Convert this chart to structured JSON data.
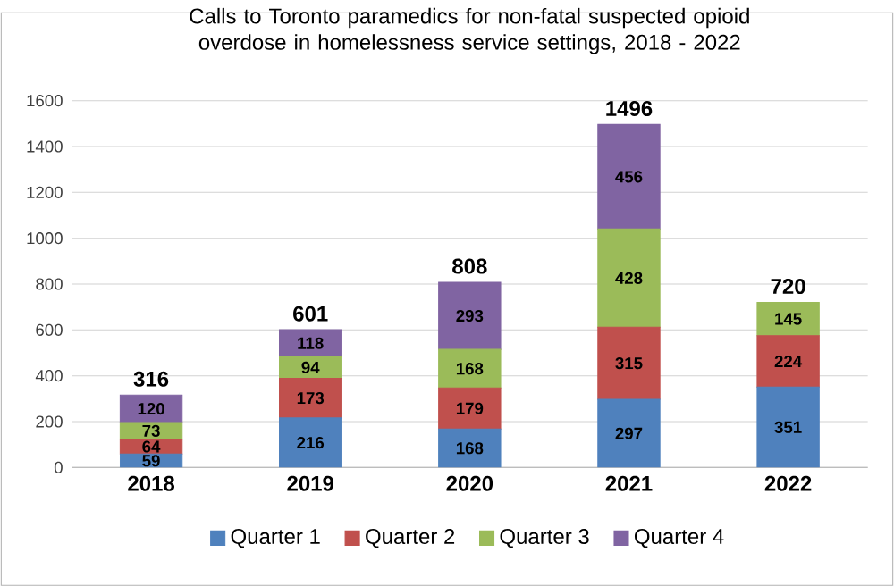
{
  "chart_data": {
    "type": "bar",
    "stacked": true,
    "title": "Calls to Toronto paramedics for non-fatal suspected opioid overdose in homelessness service settings, 2018 - 2022",
    "categories": [
      "2018",
      "2019",
      "2020",
      "2021",
      "2022"
    ],
    "series": [
      {
        "name": "Quarter 1",
        "color": "#4f81bd",
        "values": [
          59,
          216,
          168,
          297,
          351
        ]
      },
      {
        "name": "Quarter 2",
        "color": "#c0504d",
        "values": [
          64,
          173,
          179,
          315,
          224
        ]
      },
      {
        "name": "Quarter 3",
        "color": "#9bbb59",
        "values": [
          73,
          94,
          168,
          428,
          145
        ]
      },
      {
        "name": "Quarter 4",
        "color": "#8064a2",
        "values": [
          120,
          118,
          293,
          456,
          null
        ]
      }
    ],
    "totals": [
      "316",
      "601",
      "808",
      "1496",
      "720"
    ],
    "ylim": [
      0,
      1600
    ],
    "yticks": [
      0,
      200,
      400,
      600,
      800,
      1000,
      1200,
      1400,
      1600
    ],
    "grid": "y",
    "legend": "bottom",
    "data_labels": true
  }
}
